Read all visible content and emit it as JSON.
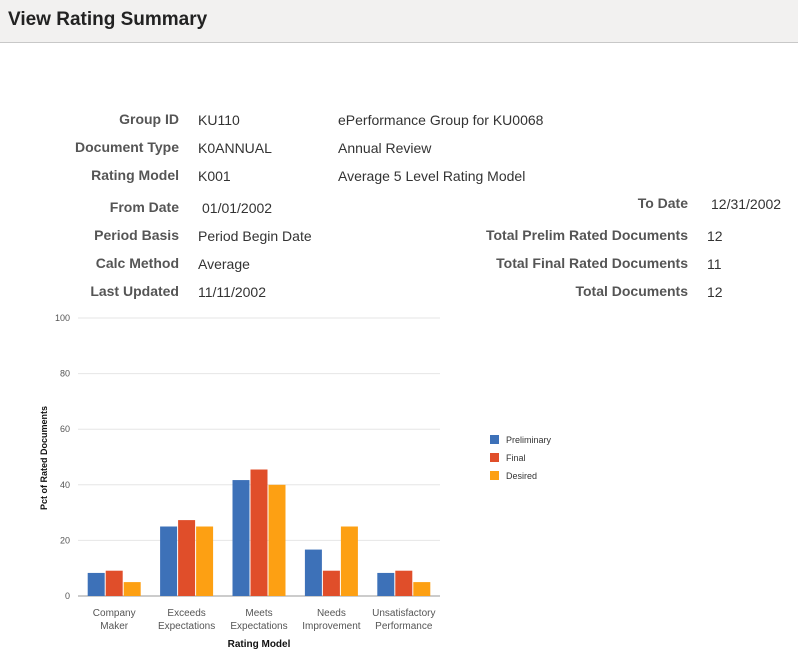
{
  "header": {
    "title": "View Rating Summary"
  },
  "fields": {
    "group_id": {
      "label": "Group ID",
      "value": "KU110",
      "description": "ePerformance Group for KU0068"
    },
    "document_type": {
      "label": "Document Type",
      "value": "K0ANNUAL",
      "description": "Annual Review"
    },
    "rating_model": {
      "label": "Rating Model",
      "value": "K001",
      "description": "Average 5 Level Rating Model"
    },
    "from_date": {
      "label": "From Date",
      "value": "01/01/2002"
    },
    "to_date": {
      "label": "To Date",
      "value": "12/31/2002"
    },
    "period_basis": {
      "label": "Period Basis",
      "value": "Period Begin Date"
    },
    "calc_method": {
      "label": "Calc Method",
      "value": "Average"
    },
    "last_updated": {
      "label": "Last Updated",
      "value": "11/11/2002"
    },
    "total_prelim": {
      "label": "Total Prelim Rated Documents",
      "value": "12"
    },
    "total_final": {
      "label": "Total Final Rated Documents",
      "value": "11"
    },
    "total_documents": {
      "label": "Total Documents",
      "value": "12"
    }
  },
  "chart_data": {
    "type": "bar",
    "xlabel": "Rating Model",
    "ylabel": "Pct of Rated Documents",
    "ylim": [
      0,
      100
    ],
    "yticks": [
      "0",
      "20",
      "40",
      "60",
      "80",
      "100"
    ],
    "grid": true,
    "legend_placement": "right",
    "categories": [
      [
        "Company",
        "Maker"
      ],
      [
        "Exceeds",
        "Expectations"
      ],
      [
        "Meets",
        "Expectations"
      ],
      [
        "Needs",
        "Improvement"
      ],
      [
        "Unsatisfactory",
        "Performance"
      ]
    ],
    "series": [
      {
        "name": "Preliminary",
        "color": "#3d71b8",
        "values": [
          8.3,
          25,
          41.7,
          16.7,
          8.3
        ]
      },
      {
        "name": "Final",
        "color": "#e04e2a",
        "values": [
          9.1,
          27.3,
          45.5,
          9.1,
          9.1
        ]
      },
      {
        "name": "Desired",
        "color": "#fda013",
        "values": [
          5,
          25,
          40,
          25,
          5
        ]
      }
    ]
  }
}
